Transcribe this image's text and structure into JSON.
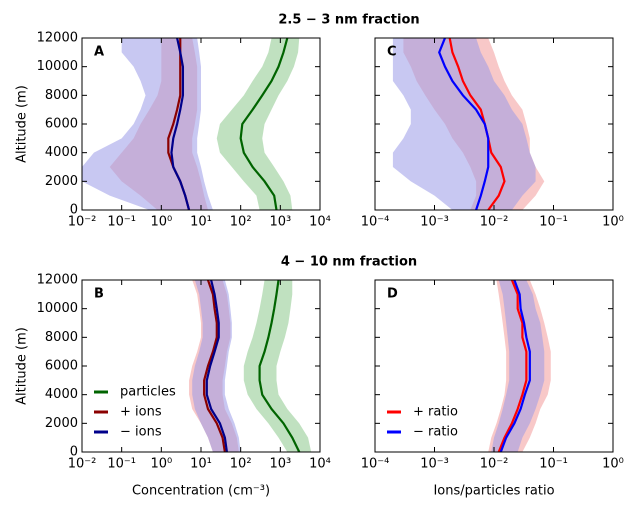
{
  "chart_data": [
    {
      "type": "profile",
      "title": "2.5 − 3 nm fraction",
      "label": "A",
      "ylabel": "Altitude (m)",
      "xscale": "log",
      "yticklabels": true,
      "xlim": [
        0.01,
        10000
      ],
      "xticks": [
        {
          "value": 0.01,
          "label": "10⁻²"
        },
        {
          "value": 0.1,
          "label": "10⁻¹"
        },
        {
          "value": 1,
          "label": "10⁰"
        },
        {
          "value": 10,
          "label": "10¹"
        },
        {
          "value": 100,
          "label": "10²"
        },
        {
          "value": 1000,
          "label": "10³"
        },
        {
          "value": 10000,
          "label": "10⁴"
        }
      ],
      "ylim": [
        0,
        12000
      ],
      "yticks": [
        0,
        2000,
        4000,
        6000,
        8000,
        10000,
        12000
      ],
      "altitudes": [
        0,
        1000,
        2000,
        3000,
        4000,
        5000,
        6000,
        7000,
        8000,
        9000,
        10000,
        11000,
        12000
      ],
      "series": [
        {
          "color": "#006400",
          "band_color": "#8cc98c",
          "values": [
            800,
            700,
            400,
            200,
            120,
            100,
            110,
            200,
            350,
            600,
            900,
            1200,
            1500
          ],
          "lower": [
            300,
            250,
            120,
            60,
            30,
            25,
            30,
            60,
            120,
            200,
            350,
            500,
            600
          ],
          "upper": [
            2000,
            1800,
            1200,
            700,
            400,
            350,
            400,
            600,
            900,
            1500,
            2200,
            2800,
            3000
          ]
        },
        {
          "color": "#8b0000",
          "band_color": "#f29a9a",
          "values": [
            5,
            4,
            3,
            2,
            1.5,
            1.5,
            2,
            2.5,
            3,
            3,
            3,
            3,
            3
          ],
          "lower": [
            0.8,
            0.3,
            0.1,
            0.05,
            0.1,
            0.2,
            0.3,
            0.5,
            0.8,
            1,
            1,
            1,
            1
          ],
          "upper": [
            15,
            12,
            10,
            8,
            6,
            6,
            7,
            8,
            8,
            8,
            8,
            7,
            6
          ]
        },
        {
          "color": "#00008b",
          "band_color": "#9a9ae8",
          "values": [
            5,
            4,
            3,
            2,
            1.8,
            2,
            2.5,
            3,
            3.5,
            3.5,
            3.5,
            3,
            2.5
          ],
          "lower": [
            0.5,
            0.05,
            0.01,
            0.01,
            0.02,
            0.1,
            0.2,
            0.3,
            0.4,
            0.3,
            0.2,
            0.1,
            0.1
          ],
          "upper": [
            20,
            15,
            12,
            10,
            8,
            8,
            9,
            10,
            10,
            10,
            10,
            9,
            8
          ]
        }
      ]
    },
    {
      "type": "profile",
      "label": "C",
      "xscale": "log",
      "yticklabels": false,
      "xlim": [
        0.0001,
        1
      ],
      "xticks": [
        {
          "value": 0.0001,
          "label": "10⁻⁴"
        },
        {
          "value": 0.001,
          "label": "10⁻³"
        },
        {
          "value": 0.01,
          "label": "10⁻²"
        },
        {
          "value": 0.1,
          "label": "10⁻¹"
        },
        {
          "value": 1,
          "label": "10⁰"
        }
      ],
      "ylim": [
        0,
        12000
      ],
      "yticks": [
        0,
        2000,
        4000,
        6000,
        8000,
        10000,
        12000
      ],
      "altitudes": [
        0,
        1000,
        2000,
        3000,
        4000,
        5000,
        6000,
        7000,
        8000,
        9000,
        10000,
        11000,
        12000
      ],
      "series": [
        {
          "color": "#ff0000",
          "band_color": "#f29a9a",
          "values": [
            0.008,
            0.012,
            0.015,
            0.013,
            0.009,
            0.008,
            0.007,
            0.006,
            0.004,
            0.003,
            0.0025,
            0.002,
            0.0018
          ],
          "lower": [
            0.004,
            0.005,
            0.005,
            0.004,
            0.003,
            0.002,
            0.0015,
            0.001,
            0.0007,
            0.0005,
            0.0004,
            0.0003,
            0.0003
          ],
          "upper": [
            0.03,
            0.05,
            0.07,
            0.05,
            0.04,
            0.04,
            0.035,
            0.03,
            0.02,
            0.015,
            0.012,
            0.01,
            0.008
          ]
        },
        {
          "color": "#0000ff",
          "band_color": "#9a9ae8",
          "values": [
            0.005,
            0.006,
            0.007,
            0.008,
            0.008,
            0.008,
            0.007,
            0.005,
            0.003,
            0.002,
            0.0015,
            0.0012,
            0.0015
          ],
          "lower": [
            0.002,
            0.001,
            0.0004,
            0.0002,
            0.0002,
            0.0003,
            0.0004,
            0.0004,
            0.0003,
            0.0002,
            0.0002,
            0.0002,
            0.0002
          ],
          "upper": [
            0.02,
            0.03,
            0.05,
            0.05,
            0.04,
            0.035,
            0.03,
            0.02,
            0.015,
            0.01,
            0.008,
            0.006,
            0.005
          ]
        }
      ]
    },
    {
      "type": "profile",
      "title": "4 − 10 nm fraction",
      "label": "B",
      "ylabel": "Altitude (m)",
      "xlabel": "Concentration (cm⁻³)",
      "xscale": "log",
      "yticklabels": true,
      "legend": "lower left",
      "xlim": [
        0.01,
        10000
      ],
      "xticks": [
        {
          "value": 0.01,
          "label": "10⁻²"
        },
        {
          "value": 0.1,
          "label": "10⁻¹"
        },
        {
          "value": 1,
          "label": "10⁰"
        },
        {
          "value": 10,
          "label": "10¹"
        },
        {
          "value": 100,
          "label": "10²"
        },
        {
          "value": 1000,
          "label": "10³"
        },
        {
          "value": 10000,
          "label": "10⁴"
        }
      ],
      "ylim": [
        0,
        12000
      ],
      "yticks": [
        0,
        2000,
        4000,
        6000,
        8000,
        10000,
        12000
      ],
      "altitudes": [
        0,
        1000,
        2000,
        3000,
        4000,
        5000,
        6000,
        7000,
        8000,
        9000,
        10000,
        11000,
        12000
      ],
      "series": [
        {
          "name": "particles",
          "color": "#006400",
          "band_color": "#8cc98c",
          "values": [
            3000,
            2000,
            1200,
            600,
            350,
            300,
            300,
            400,
            500,
            600,
            700,
            800,
            900
          ],
          "lower": [
            1500,
            900,
            500,
            250,
            150,
            120,
            120,
            150,
            200,
            250,
            300,
            350,
            400
          ],
          "upper": [
            6000,
            5000,
            3000,
            1500,
            900,
            800,
            800,
            1000,
            1300,
            1600,
            1800,
            2000,
            2000
          ]
        },
        {
          "name": "+ ions",
          "color": "#8b0000",
          "band_color": "#f29a9a",
          "values": [
            40,
            35,
            25,
            15,
            12,
            12,
            15,
            20,
            25,
            25,
            22,
            20,
            15
          ],
          "lower": [
            20,
            15,
            10,
            6,
            5,
            5,
            6,
            8,
            10,
            10,
            9,
            8,
            6
          ],
          "upper": [
            90,
            80,
            60,
            40,
            35,
            35,
            40,
            45,
            55,
            55,
            50,
            45,
            35
          ]
        },
        {
          "name": "− ions",
          "color": "#00008b",
          "band_color": "#9a9ae8",
          "values": [
            45,
            40,
            30,
            18,
            14,
            14,
            17,
            22,
            28,
            28,
            25,
            22,
            18
          ],
          "lower": [
            20,
            15,
            10,
            7,
            6,
            6,
            7,
            9,
            11,
            11,
            10,
            9,
            7
          ],
          "upper": [
            100,
            90,
            70,
            50,
            40,
            40,
            45,
            50,
            60,
            60,
            55,
            50,
            40
          ]
        }
      ]
    },
    {
      "type": "profile",
      "label": "D",
      "xlabel": "Ions/particles ratio",
      "xscale": "log",
      "yticklabels": false,
      "legend": "lower left",
      "xlim": [
        0.0001,
        1
      ],
      "xticks": [
        {
          "value": 0.0001,
          "label": "10⁻⁴"
        },
        {
          "value": 0.001,
          "label": "10⁻³"
        },
        {
          "value": 0.01,
          "label": "10⁻²"
        },
        {
          "value": 0.1,
          "label": "10⁻¹"
        },
        {
          "value": 1,
          "label": "10⁰"
        }
      ],
      "ylim": [
        0,
        12000
      ],
      "yticks": [
        0,
        2000,
        4000,
        6000,
        8000,
        10000,
        12000
      ],
      "altitudes": [
        0,
        1000,
        2000,
        3000,
        4000,
        5000,
        6000,
        7000,
        8000,
        9000,
        10000,
        11000,
        12000
      ],
      "series": [
        {
          "name": "+ ratio",
          "color": "#ff0000",
          "band_color": "#f29a9a",
          "values": [
            0.012,
            0.015,
            0.02,
            0.025,
            0.03,
            0.035,
            0.035,
            0.035,
            0.03,
            0.03,
            0.025,
            0.025,
            0.02
          ],
          "lower": [
            0.008,
            0.009,
            0.011,
            0.013,
            0.015,
            0.016,
            0.016,
            0.016,
            0.015,
            0.014,
            0.013,
            0.012,
            0.011
          ],
          "upper": [
            0.03,
            0.04,
            0.05,
            0.06,
            0.08,
            0.09,
            0.09,
            0.09,
            0.08,
            0.07,
            0.06,
            0.05,
            0.04
          ]
        },
        {
          "name": "− ratio",
          "color": "#0000ff",
          "band_color": "#9a9ae8",
          "values": [
            0.013,
            0.016,
            0.022,
            0.028,
            0.033,
            0.04,
            0.04,
            0.04,
            0.035,
            0.032,
            0.028,
            0.027,
            0.022
          ],
          "lower": [
            0.009,
            0.01,
            0.012,
            0.014,
            0.016,
            0.018,
            0.018,
            0.018,
            0.017,
            0.016,
            0.015,
            0.014,
            0.012
          ],
          "upper": [
            0.025,
            0.03,
            0.04,
            0.05,
            0.06,
            0.07,
            0.07,
            0.07,
            0.065,
            0.06,
            0.05,
            0.045,
            0.035
          ]
        }
      ]
    }
  ]
}
